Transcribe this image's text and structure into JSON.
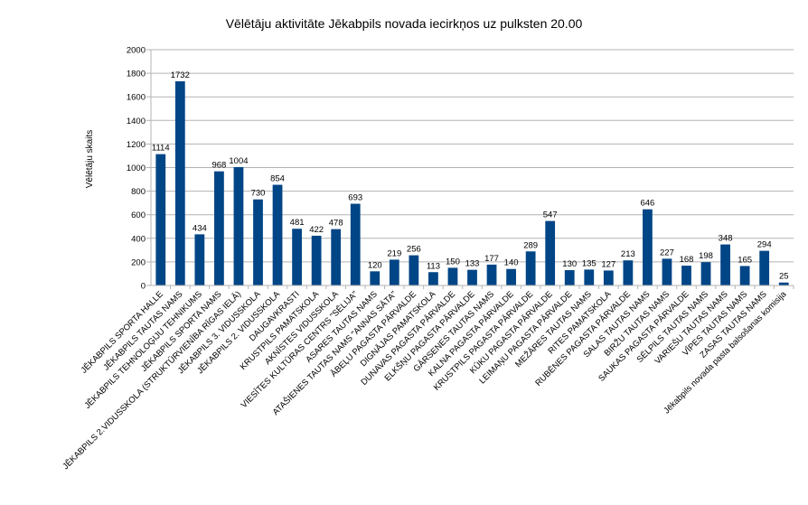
{
  "chart_data": {
    "type": "bar",
    "title": "Vēlētāju aktivitāte Jēkabpils novada iecirkņos uz pulksten 20.00",
    "xlabel": "",
    "ylabel": "Vēlētāju skaits",
    "ylim": [
      0,
      2000
    ],
    "ytick_step": 200,
    "grid": true,
    "legend": "none",
    "bar_color": "#004586",
    "categories": [
      "JĒKABPILS SPORTA HALLE",
      "JĒKABPILS TAUTAS NAMS",
      "JĒKABPILS TEHNOLOĢIJU TEHNIKUMS",
      "JĒKABPILS SPORTA NAMS",
      "JĒKABPILS 2.VIDUSSKOLA (STRUKTŪRVIENĪBA RĪGAS IELĀ)",
      "JĒKABPILS 3. VIDUSSKOLA",
      "JĒKABPILS 2. VIDUSSKOLA",
      "DAUGAVKRASTI",
      "KRUSTPILS PAMATSKOLA",
      "AKNĪSTES VIDUSSKOLA",
      "VIESĪTES KULTŪRAS CENTRS \"SĒLIJA\"",
      "ASARES TAUTAS NAMS",
      "ATAŠIENES TAUTAS NAMS \"ANNAS SĀTA\"",
      "ĀBEĻU PAGASTA PĀRVALDE",
      "DIGNĀJAS PAMATSKOLA",
      "DUNAVAS PAGASTA PĀRVALDE",
      "ELKŠŅU PAGASTA PĀRVALDE",
      "GĀRSENES TAUTAS NAMS",
      "KALNA PAGASTA PĀRVALDE",
      "KRUSTPILS PAGASTA PĀRVALDE",
      "KŪKU PAGASTA PĀRVALDE",
      "LEIMAŅU PAGASTA PĀRVALDE",
      "MEŽĀRES TAUTAS NAMS",
      "RITES PAMATSKOLA",
      "RUBĒNES PAGASTA PĀRVALDE",
      "SALAS TAUTAS NAMS",
      "BIRŽU TAUTAS NAMS",
      "SAUKAS PAGASTA PĀRVALDE",
      "SĒLPILS TAUTAS NAMS",
      "VARIEŠU TAUTAS NAMS",
      "VĪPES TAUTAS NAMS",
      "ZASAS TAUTAS NAMS",
      "Jēkabpils novada pasta balsošanas komisija"
    ],
    "values": [
      1114,
      1732,
      434,
      968,
      1004,
      730,
      854,
      481,
      422,
      478,
      693,
      120,
      219,
      256,
      113,
      150,
      133,
      177,
      140,
      289,
      547,
      130,
      135,
      127,
      213,
      646,
      227,
      168,
      198,
      348,
      165,
      294,
      25
    ]
  }
}
